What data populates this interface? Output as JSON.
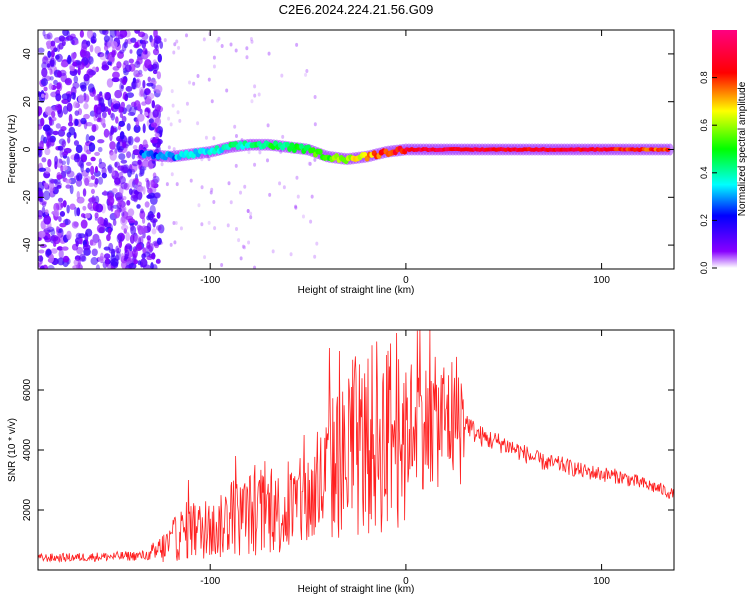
{
  "title": "C2E6.2024.224.21.56.G09",
  "chart_data": [
    {
      "type": "heatmap",
      "xlabel": "Height of straight line (km)",
      "ylabel": "Frequency (Hz)",
      "xlim": [
        -188,
        137
      ],
      "ylim": [
        -50,
        50
      ],
      "x_ticks": [
        -100,
        0,
        100
      ],
      "y_ticks": [
        -40,
        -20,
        0,
        20,
        40
      ],
      "colorbar": {
        "label": "Normalized spectral amplitude",
        "range": [
          0.0,
          1.0
        ],
        "ticks": [
          0.0,
          0.2,
          0.4,
          0.6,
          0.8
        ],
        "colors": [
          "#ffffff",
          "#8800ff",
          "#0000ff",
          "#00ffff",
          "#00ff00",
          "#ffff00",
          "#ff0000",
          "#ff0080"
        ]
      },
      "ridge": {
        "x": [
          -135,
          -120,
          -110,
          -100,
          -90,
          -80,
          -70,
          -60,
          -50,
          -40,
          -30,
          -20,
          -10,
          0,
          10,
          20,
          40,
          60,
          80,
          100,
          120,
          135
        ],
        "frequency": [
          -2,
          -3,
          -2,
          -1,
          1,
          2,
          2,
          1,
          0,
          -3,
          -4,
          -3,
          -1,
          0,
          0,
          0,
          0,
          0,
          0,
          0,
          0,
          0
        ],
        "amplitude": [
          0.25,
          0.3,
          0.35,
          0.35,
          0.4,
          0.4,
          0.45,
          0.45,
          0.5,
          0.55,
          0.6,
          0.7,
          0.8,
          0.85,
          0.9,
          0.88,
          0.87,
          0.86,
          0.86,
          0.85,
          0.8,
          0.75
        ]
      }
    },
    {
      "type": "line",
      "xlabel": "Height of straight line (km)",
      "ylabel": "SNR (10 * v/v)",
      "xlim": [
        -188,
        137
      ],
      "ylim": [
        0,
        8000
      ],
      "x_ticks": [
        -100,
        0,
        100
      ],
      "y_ticks": [
        2000,
        4000,
        6000
      ],
      "series": [
        {
          "color": "#ff2020",
          "x": [
            -188,
            -170,
            -150,
            -135,
            -130,
            -125,
            -120,
            -115,
            -110,
            -105,
            -100,
            -95,
            -90,
            -85,
            -80,
            -75,
            -70,
            -65,
            -60,
            -55,
            -50,
            -45,
            -40,
            -35,
            -30,
            -25,
            -20,
            -15,
            -10,
            -5,
            0,
            5,
            10,
            15,
            20,
            25,
            30,
            35,
            40,
            50,
            60,
            70,
            80,
            90,
            100,
            110,
            120,
            130,
            137
          ],
          "values": [
            400,
            420,
            450,
            480,
            500,
            700,
            900,
            1200,
            1400,
            1300,
            1300,
            1400,
            1800,
            1700,
            1900,
            1800,
            2000,
            1900,
            2000,
            2100,
            2300,
            2600,
            3100,
            3600,
            3500,
            3900,
            4100,
            4500,
            4300,
            4900,
            4600,
            5100,
            4800,
            4900,
            5000,
            5100,
            5000,
            4600,
            4400,
            4200,
            3900,
            3600,
            3500,
            3300,
            3200,
            3100,
            2900,
            2700,
            2500
          ],
          "spikes": [
            {
              "x": -111,
              "y": 3000
            },
            {
              "x": -87,
              "y": 3800
            },
            {
              "x": -52,
              "y": 4500
            },
            {
              "x": -39,
              "y": 7400
            },
            {
              "x": -34,
              "y": 7300
            },
            {
              "x": -28,
              "y": 6100
            },
            {
              "x": -8,
              "y": 6000
            },
            {
              "x": 7,
              "y": 8000
            },
            {
              "x": 13,
              "y": 6300
            }
          ]
        }
      ]
    }
  ]
}
